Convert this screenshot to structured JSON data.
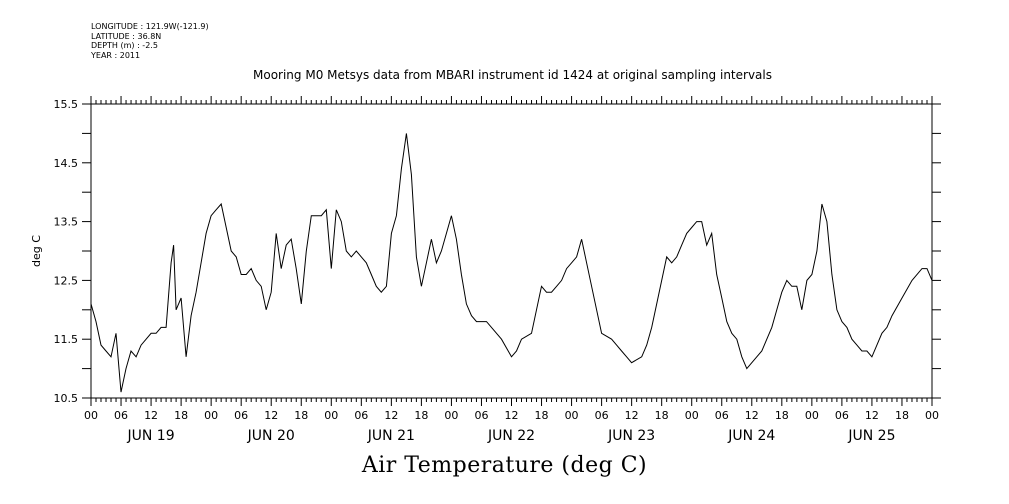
{
  "meta": {
    "lines": [
      "LONGITUDE : 121.9W(-121.9)",
      "LATITUDE : 36.8N",
      "DEPTH (m) : -2.5",
      "YEAR : 2011"
    ]
  },
  "chart_data": {
    "type": "line",
    "title": "Mooring M0 Metsys data from MBARI instrument id 1424 at original sampling intervals",
    "xlabel": "Air Temperature (deg C)",
    "ylabel": "deg C",
    "ylim": [
      10.5,
      15.5
    ],
    "yticks": [
      10.5,
      11.5,
      12.5,
      13.5,
      14.5,
      15.5
    ],
    "yticklabels": [
      "10.5",
      "11.5",
      "12.5",
      "13.5",
      "14.5",
      "15.5"
    ],
    "xlim_hours": [
      0,
      168
    ],
    "hour_ticks": [
      "00",
      "06",
      "12",
      "18",
      "00",
      "06",
      "12",
      "18",
      "00",
      "06",
      "12",
      "18",
      "00",
      "06",
      "12",
      "18",
      "00",
      "06",
      "12",
      "18",
      "00",
      "06",
      "12",
      "18",
      "00",
      "06",
      "12",
      "18",
      "00"
    ],
    "day_labels": [
      "JUN 19",
      "JUN 20",
      "JUN 21",
      "JUN 22",
      "JUN 23",
      "JUN 24",
      "JUN 25"
    ],
    "grid": false,
    "series": [
      {
        "name": "",
        "color": "#000000",
        "points": [
          [
            0,
            12.1
          ],
          [
            1,
            11.8
          ],
          [
            2,
            11.4
          ],
          [
            3,
            11.3
          ],
          [
            4,
            11.2
          ],
          [
            5,
            11.6
          ],
          [
            6,
            10.6
          ],
          [
            7,
            11.0
          ],
          [
            8,
            11.3
          ],
          [
            9,
            11.2
          ],
          [
            10,
            11.4
          ],
          [
            11,
            11.5
          ],
          [
            12,
            11.6
          ],
          [
            13,
            11.6
          ],
          [
            14,
            11.7
          ],
          [
            15,
            11.7
          ],
          [
            16,
            12.8
          ],
          [
            16.5,
            13.1
          ],
          [
            17,
            12.0
          ],
          [
            18,
            12.2
          ],
          [
            19,
            11.2
          ],
          [
            20,
            11.9
          ],
          [
            21,
            12.3
          ],
          [
            22,
            12.8
          ],
          [
            23,
            13.3
          ],
          [
            24,
            13.6
          ],
          [
            25,
            13.7
          ],
          [
            26,
            13.8
          ],
          [
            27,
            13.4
          ],
          [
            28,
            13.0
          ],
          [
            29,
            12.9
          ],
          [
            30,
            12.6
          ],
          [
            31,
            12.6
          ],
          [
            32,
            12.7
          ],
          [
            33,
            12.5
          ],
          [
            34,
            12.4
          ],
          [
            35,
            12.0
          ],
          [
            36,
            12.3
          ],
          [
            37,
            13.3
          ],
          [
            38,
            12.7
          ],
          [
            39,
            13.1
          ],
          [
            40,
            13.2
          ],
          [
            41,
            12.7
          ],
          [
            42,
            12.1
          ],
          [
            43,
            13.0
          ],
          [
            44,
            13.6
          ],
          [
            45,
            13.6
          ],
          [
            46,
            13.6
          ],
          [
            47,
            13.7
          ],
          [
            48,
            12.7
          ],
          [
            49,
            13.7
          ],
          [
            50,
            13.5
          ],
          [
            51,
            13.0
          ],
          [
            52,
            12.9
          ],
          [
            53,
            13.0
          ],
          [
            54,
            12.9
          ],
          [
            55,
            12.8
          ],
          [
            56,
            12.6
          ],
          [
            57,
            12.4
          ],
          [
            58,
            12.3
          ],
          [
            59,
            12.4
          ],
          [
            60,
            13.3
          ],
          [
            61,
            13.6
          ],
          [
            62,
            14.4
          ],
          [
            63,
            15.0
          ],
          [
            64,
            14.3
          ],
          [
            65,
            12.9
          ],
          [
            66,
            12.4
          ],
          [
            67,
            12.8
          ],
          [
            68,
            13.2
          ],
          [
            69,
            12.8
          ],
          [
            70,
            13.0
          ],
          [
            71,
            13.3
          ],
          [
            72,
            13.6
          ],
          [
            73,
            13.2
          ],
          [
            74,
            12.6
          ],
          [
            75,
            12.1
          ],
          [
            76,
            11.9
          ],
          [
            77,
            11.8
          ],
          [
            78,
            11.8
          ],
          [
            79,
            11.8
          ],
          [
            80,
            11.7
          ],
          [
            82,
            11.5
          ],
          [
            84,
            11.2
          ],
          [
            85,
            11.3
          ],
          [
            86,
            11.5
          ],
          [
            88,
            11.6
          ],
          [
            89,
            12.0
          ],
          [
            90,
            12.4
          ],
          [
            91,
            12.3
          ],
          [
            92,
            12.3
          ],
          [
            93,
            12.4
          ],
          [
            94,
            12.5
          ],
          [
            95,
            12.7
          ],
          [
            96,
            12.8
          ],
          [
            97,
            12.9
          ],
          [
            98,
            13.2
          ],
          [
            99,
            12.8
          ],
          [
            100,
            12.4
          ],
          [
            101,
            12.0
          ],
          [
            102,
            11.6
          ],
          [
            104,
            11.5
          ],
          [
            105,
            11.4
          ],
          [
            106,
            11.3
          ],
          [
            107,
            11.2
          ],
          [
            108,
            11.1
          ],
          [
            110,
            11.2
          ],
          [
            111,
            11.4
          ],
          [
            112,
            11.7
          ],
          [
            113,
            12.1
          ],
          [
            114,
            12.5
          ],
          [
            115,
            12.9
          ],
          [
            116,
            12.8
          ],
          [
            117,
            12.9
          ],
          [
            118,
            13.1
          ],
          [
            119,
            13.3
          ],
          [
            120,
            13.4
          ],
          [
            121,
            13.5
          ],
          [
            122,
            13.5
          ],
          [
            123,
            13.1
          ],
          [
            124,
            13.3
          ],
          [
            125,
            12.6
          ],
          [
            126,
            12.2
          ],
          [
            127,
            11.8
          ],
          [
            128,
            11.6
          ],
          [
            129,
            11.5
          ],
          [
            130,
            11.2
          ],
          [
            131,
            11.0
          ],
          [
            132,
            11.1
          ],
          [
            133,
            11.2
          ],
          [
            134,
            11.3
          ],
          [
            135,
            11.5
          ],
          [
            136,
            11.7
          ],
          [
            137,
            12.0
          ],
          [
            138,
            12.3
          ],
          [
            139,
            12.5
          ],
          [
            140,
            12.4
          ],
          [
            141,
            12.4
          ],
          [
            142,
            12.0
          ],
          [
            143,
            12.5
          ],
          [
            144,
            12.6
          ],
          [
            145,
            13.0
          ],
          [
            146,
            13.8
          ],
          [
            147,
            13.5
          ],
          [
            148,
            12.6
          ],
          [
            149,
            12.0
          ],
          [
            150,
            11.8
          ],
          [
            151,
            11.7
          ],
          [
            152,
            11.5
          ],
          [
            153,
            11.4
          ],
          [
            154,
            11.3
          ],
          [
            155,
            11.3
          ],
          [
            156,
            11.2
          ],
          [
            157,
            11.4
          ],
          [
            158,
            11.6
          ],
          [
            159,
            11.7
          ],
          [
            160,
            11.9
          ],
          [
            162,
            12.2
          ],
          [
            164,
            12.5
          ],
          [
            166,
            12.7
          ],
          [
            167,
            12.7
          ],
          [
            168,
            12.5
          ]
        ]
      }
    ]
  }
}
